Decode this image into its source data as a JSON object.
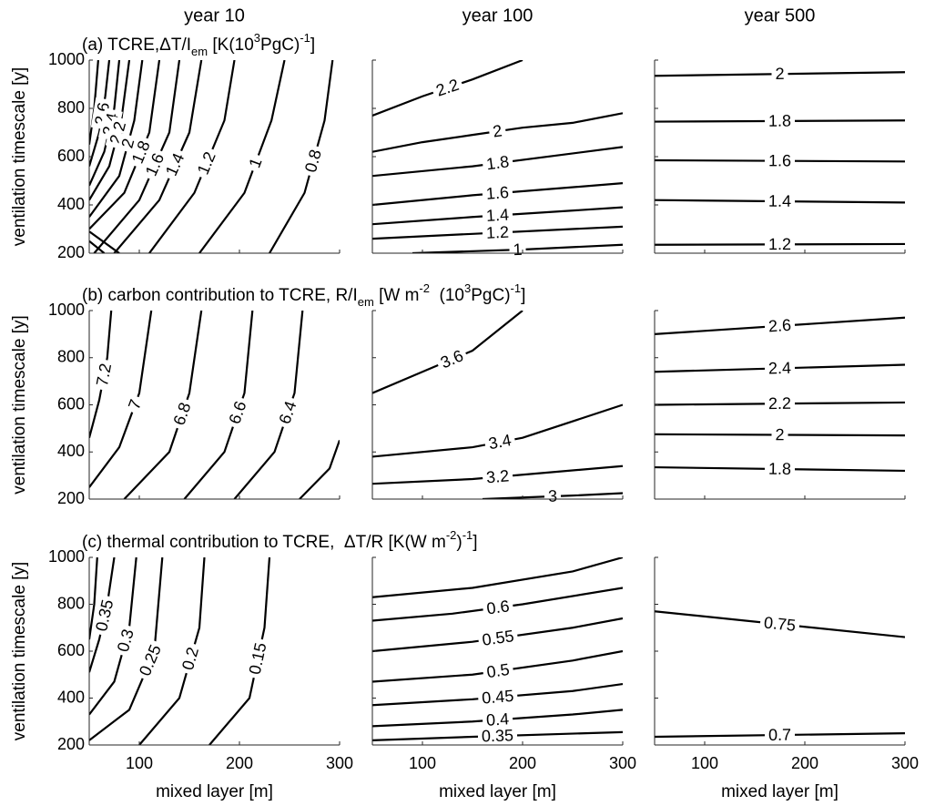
{
  "chart_data": [
    {
      "type": "contour",
      "title": "year 10",
      "subtitle": [
        {
          "text": "(a) TCRE,"
        },
        {
          "text": "ΔT/I"
        },
        {
          "text": "em",
          "shift": "sub"
        },
        {
          "text": " [K(10"
        },
        {
          "text": "3",
          "shift": "sup"
        },
        {
          "text": "PgC)"
        },
        {
          "text": "-1",
          "shift": "sup"
        },
        {
          "text": "]"
        }
      ],
      "ylabel": "ventilation timescale [y]",
      "show_xticklabels": false,
      "show_yticklabels": true,
      "xlim": [
        50,
        300
      ],
      "ylim": [
        200,
        1000
      ],
      "xticks": [
        100,
        200,
        300
      ],
      "yticks": [
        200,
        400,
        600,
        800,
        1000
      ],
      "contours": [
        {
          "x": [
            50,
            55,
            59
          ],
          "y": [
            650,
            800,
            1000
          ]
        },
        {
          "level": 2.6,
          "x": [
            50,
            60,
            66,
            70
          ],
          "y": [
            560,
            700,
            850,
            1000
          ]
        },
        {
          "level": 2.4,
          "x": [
            50,
            65,
            75,
            80
          ],
          "y": [
            480,
            620,
            800,
            1000
          ]
        },
        {
          "level": 2.2,
          "x": [
            50,
            70,
            82,
            90
          ],
          "y": [
            420,
            560,
            750,
            1000
          ]
        },
        {
          "level": 2,
          "x": [
            50,
            80,
            95,
            103
          ],
          "y": [
            350,
            520,
            750,
            1000
          ]
        },
        {
          "level": 1.8,
          "x": [
            50,
            85,
            110,
            120
          ],
          "y": [
            300,
            450,
            700,
            1000
          ]
        },
        {
          "level": 1.6,
          "x": [
            55,
            100,
            130,
            140
          ],
          "y": [
            200,
            420,
            700,
            1000
          ]
        },
        {
          "level": 1.4,
          "x": [
            75,
            120,
            150,
            162
          ],
          "y": [
            200,
            420,
            700,
            1000
          ]
        },
        {
          "level": 1.2,
          "x": [
            110,
            155,
            185,
            195
          ],
          "y": [
            200,
            450,
            750,
            1000
          ]
        },
        {
          "level": 1,
          "x": [
            160,
            205,
            232,
            245
          ],
          "y": [
            200,
            450,
            750,
            1000
          ]
        },
        {
          "level": 0.8,
          "x": [
            230,
            265,
            285,
            293
          ],
          "y": [
            200,
            450,
            750,
            1000
          ]
        },
        {
          "x": [
            50,
            65
          ],
          "y": [
            250,
            200
          ]
        },
        {
          "x": [
            50,
            80
          ],
          "y": [
            290,
            200
          ]
        }
      ]
    },
    {
      "type": "contour",
      "title": "year 100",
      "show_xticklabels": false,
      "show_yticklabels": false,
      "xlim": [
        50,
        300
      ],
      "ylim": [
        200,
        1000
      ],
      "xticks": [
        100,
        200,
        300
      ],
      "yticks": [
        200,
        400,
        600,
        800,
        1000
      ],
      "contours": [
        {
          "level": 2.2,
          "x": [
            50,
            100,
            150,
            200
          ],
          "y": [
            770,
            850,
            920,
            1000
          ]
        },
        {
          "level": 2,
          "x": [
            50,
            100,
            150,
            200,
            250,
            300
          ],
          "y": [
            620,
            660,
            690,
            720,
            740,
            780
          ]
        },
        {
          "level": 1.8,
          "x": [
            50,
            150,
            300
          ],
          "y": [
            520,
            560,
            640
          ]
        },
        {
          "level": 1.6,
          "x": [
            50,
            150,
            300
          ],
          "y": [
            400,
            440,
            490
          ]
        },
        {
          "level": 1.4,
          "x": [
            50,
            150,
            300
          ],
          "y": [
            320,
            350,
            390
          ]
        },
        {
          "level": 1.2,
          "x": [
            50,
            150,
            300
          ],
          "y": [
            260,
            280,
            310
          ]
        },
        {
          "level": 1,
          "x": [
            90,
            200,
            300
          ],
          "y": [
            200,
            215,
            235
          ]
        }
      ]
    },
    {
      "type": "contour",
      "title": "year 500",
      "show_xticklabels": false,
      "show_yticklabels": false,
      "xlim": [
        50,
        300
      ],
      "ylim": [
        200,
        1000
      ],
      "xticks": [
        100,
        200,
        300
      ],
      "yticks": [
        200,
        400,
        600,
        800,
        1000
      ],
      "contours": [
        {
          "level": 2,
          "x": [
            50,
            300
          ],
          "y": [
            935,
            950
          ]
        },
        {
          "level": 1.8,
          "x": [
            50,
            300
          ],
          "y": [
            745,
            750
          ]
        },
        {
          "level": 1.6,
          "x": [
            50,
            300
          ],
          "y": [
            585,
            580
          ]
        },
        {
          "level": 1.4,
          "x": [
            50,
            300
          ],
          "y": [
            420,
            410
          ]
        },
        {
          "level": 1.2,
          "x": [
            50,
            300
          ],
          "y": [
            235,
            238
          ]
        }
      ]
    },
    {
      "type": "contour",
      "subtitle": [
        {
          "text": "(b) carbon contribution to TCRE, R/I"
        },
        {
          "text": "em",
          "shift": "sub"
        },
        {
          "text": " [W m"
        },
        {
          "text": "-2",
          "shift": "sup"
        },
        {
          "text": "  (10"
        },
        {
          "text": "3",
          "shift": "sup"
        },
        {
          "text": "PgC)"
        },
        {
          "text": "-1",
          "shift": "sup"
        },
        {
          "text": "]"
        }
      ],
      "ylabel": "ventilation timescale [y]",
      "show_xticklabels": false,
      "show_yticklabels": true,
      "xlim": [
        50,
        300
      ],
      "ylim": [
        200,
        1000
      ],
      "xticks": [
        100,
        200,
        300
      ],
      "yticks": [
        200,
        400,
        600,
        800,
        1000
      ],
      "contours": [
        {
          "level": 7.2,
          "x": [
            50,
            60,
            68,
            72
          ],
          "y": [
            460,
            620,
            800,
            1000
          ]
        },
        {
          "level": 7,
          "x": [
            50,
            80,
            100,
            112
          ],
          "y": [
            250,
            420,
            650,
            1000
          ]
        },
        {
          "level": 6.8,
          "x": [
            85,
            130,
            150,
            162
          ],
          "y": [
            200,
            400,
            650,
            1000
          ]
        },
        {
          "level": 6.6,
          "x": [
            145,
            185,
            205,
            213
          ],
          "y": [
            200,
            400,
            650,
            1000
          ]
        },
        {
          "level": 6.4,
          "x": [
            195,
            235,
            255,
            263
          ],
          "y": [
            200,
            400,
            650,
            1000
          ]
        },
        {
          "x": [
            260,
            290,
            300
          ],
          "y": [
            200,
            330,
            450
          ]
        }
      ]
    },
    {
      "type": "contour",
      "show_xticklabels": false,
      "show_yticklabels": false,
      "xlim": [
        50,
        300
      ],
      "ylim": [
        200,
        1000
      ],
      "xticks": [
        100,
        200,
        300
      ],
      "yticks": [
        200,
        400,
        600,
        800,
        1000
      ],
      "contours": [
        {
          "level": 3.6,
          "x": [
            50,
            100,
            150,
            200
          ],
          "y": [
            650,
            740,
            830,
            1000
          ]
        },
        {
          "level": 3.4,
          "x": [
            50,
            150,
            200,
            300
          ],
          "y": [
            380,
            420,
            460,
            600
          ]
        },
        {
          "level": 3.2,
          "x": [
            50,
            150,
            300
          ],
          "y": [
            265,
            285,
            340
          ]
        },
        {
          "level": 3,
          "x": [
            160,
            250,
            300
          ],
          "y": [
            200,
            215,
            225
          ]
        }
      ]
    },
    {
      "type": "contour",
      "show_xticklabels": false,
      "show_yticklabels": false,
      "xlim": [
        50,
        300
      ],
      "ylim": [
        200,
        1000
      ],
      "xticks": [
        100,
        200,
        300
      ],
      "yticks": [
        200,
        400,
        600,
        800,
        1000
      ],
      "contours": [
        {
          "level": 2.6,
          "x": [
            50,
            300
          ],
          "y": [
            900,
            970
          ]
        },
        {
          "level": 2.4,
          "x": [
            50,
            300
          ],
          "y": [
            740,
            770
          ]
        },
        {
          "level": 2.2,
          "x": [
            50,
            300
          ],
          "y": [
            600,
            610
          ]
        },
        {
          "level": 2,
          "x": [
            50,
            300
          ],
          "y": [
            475,
            470
          ]
        },
        {
          "level": 1.8,
          "x": [
            50,
            300
          ],
          "y": [
            335,
            320
          ]
        }
      ]
    },
    {
      "type": "contour",
      "subtitle": [
        {
          "text": "(c) thermal contribution to TCRE,  ΔT/R [K(W m"
        },
        {
          "text": "-2",
          "shift": "sup"
        },
        {
          "text": ")"
        },
        {
          "text": "-1",
          "shift": "sup"
        },
        {
          "text": "]"
        }
      ],
      "ylabel": "ventilation timescale [y]",
      "xlabel": "mixed layer [m]",
      "show_xticklabels": true,
      "show_yticklabels": true,
      "xlim": [
        50,
        300
      ],
      "ylim": [
        200,
        1000
      ],
      "xticks": [
        100,
        200,
        300
      ],
      "yticks": [
        200,
        400,
        600,
        800,
        1000
      ],
      "contours": [
        {
          "x": [
            50,
            55,
            58
          ],
          "y": [
            650,
            800,
            1000
          ]
        },
        {
          "level": 0.35,
          "x": [
            50,
            60,
            68,
            75
          ],
          "y": [
            510,
            650,
            800,
            1000
          ]
        },
        {
          "level": 0.3,
          "x": [
            50,
            75,
            90,
            97
          ],
          "y": [
            330,
            470,
            700,
            1000
          ]
        },
        {
          "level": 0.25,
          "x": [
            50,
            90,
            115,
            123
          ],
          "y": [
            220,
            350,
            600,
            1000
          ]
        },
        {
          "level": 0.2,
          "x": [
            100,
            140,
            160,
            165
          ],
          "y": [
            200,
            400,
            700,
            1000
          ]
        },
        {
          "level": 0.15,
          "x": [
            170,
            210,
            225,
            230
          ],
          "y": [
            200,
            400,
            700,
            1000
          ]
        }
      ]
    },
    {
      "type": "contour",
      "xlabel": "mixed layer [m]",
      "show_xticklabels": true,
      "show_yticklabels": false,
      "xlim": [
        50,
        300
      ],
      "ylim": [
        200,
        1000
      ],
      "xticks": [
        100,
        200,
        300
      ],
      "yticks": [
        200,
        400,
        600,
        800,
        1000
      ],
      "contours": [
        {
          "x": [
            50,
            150,
            250,
            300
          ],
          "y": [
            830,
            870,
            940,
            1000
          ]
        },
        {
          "level": 0.6,
          "x": [
            50,
            130,
            200,
            300
          ],
          "y": [
            730,
            760,
            800,
            870
          ]
        },
        {
          "level": 0.55,
          "x": [
            50,
            150,
            250,
            300
          ],
          "y": [
            600,
            640,
            700,
            740
          ]
        },
        {
          "level": 0.5,
          "x": [
            50,
            150,
            250,
            300
          ],
          "y": [
            470,
            500,
            560,
            600
          ]
        },
        {
          "level": 0.45,
          "x": [
            50,
            150,
            250,
            300
          ],
          "y": [
            370,
            395,
            430,
            460
          ]
        },
        {
          "level": 0.4,
          "x": [
            50,
            150,
            250,
            300
          ],
          "y": [
            280,
            300,
            330,
            350
          ]
        },
        {
          "level": 0.35,
          "x": [
            50,
            150,
            300
          ],
          "y": [
            220,
            235,
            255
          ]
        }
      ]
    },
    {
      "type": "contour",
      "xlabel": "mixed layer [m]",
      "show_xticklabels": true,
      "show_yticklabels": false,
      "xlim": [
        50,
        300
      ],
      "ylim": [
        200,
        1000
      ],
      "xticks": [
        100,
        200,
        300
      ],
      "yticks": [
        200,
        400,
        600,
        800,
        1000
      ],
      "contours": [
        {
          "level": 0.75,
          "x": [
            50,
            300
          ],
          "y": [
            770,
            660
          ]
        },
        {
          "level": 0.7,
          "x": [
            50,
            300
          ],
          "y": [
            235,
            250
          ]
        }
      ]
    }
  ]
}
